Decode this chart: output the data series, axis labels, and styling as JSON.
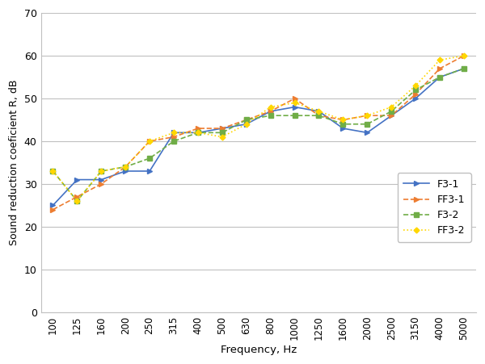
{
  "frequencies": [
    100,
    125,
    160,
    200,
    250,
    315,
    400,
    500,
    630,
    800,
    1000,
    1250,
    1600,
    2000,
    2500,
    3150,
    4000,
    5000
  ],
  "F3_1": [
    25,
    31,
    31,
    33,
    33,
    42,
    42,
    43,
    44,
    47,
    48,
    47,
    43,
    42,
    46,
    50,
    55,
    57
  ],
  "FF3_1": [
    24,
    27,
    30,
    34,
    40,
    41,
    43,
    43,
    45,
    47,
    50,
    46,
    45,
    46,
    46,
    51,
    57,
    60
  ],
  "F3_2": [
    33,
    26,
    33,
    34,
    36,
    40,
    42,
    42,
    45,
    46,
    46,
    46,
    44,
    44,
    47,
    52,
    55,
    57
  ],
  "FF3_2": [
    33,
    26,
    33,
    34,
    40,
    42,
    42,
    41,
    44,
    48,
    49,
    47,
    45,
    46,
    48,
    53,
    59,
    60
  ],
  "color_F3_1": "#4472C4",
  "color_FF3_1": "#ED7D31",
  "color_F3_2": "#70AD47",
  "color_FF3_2": "#FFD700",
  "xlabel": "Frequency, Hz",
  "ylabel": "Sound reduction coeficient R, dB",
  "ylim": [
    0,
    70
  ],
  "yticks": [
    0,
    10,
    20,
    30,
    40,
    50,
    60,
    70
  ],
  "legend_labels": [
    "F3-1",
    "FF3-1",
    "F3-2",
    "FF3-2"
  ]
}
